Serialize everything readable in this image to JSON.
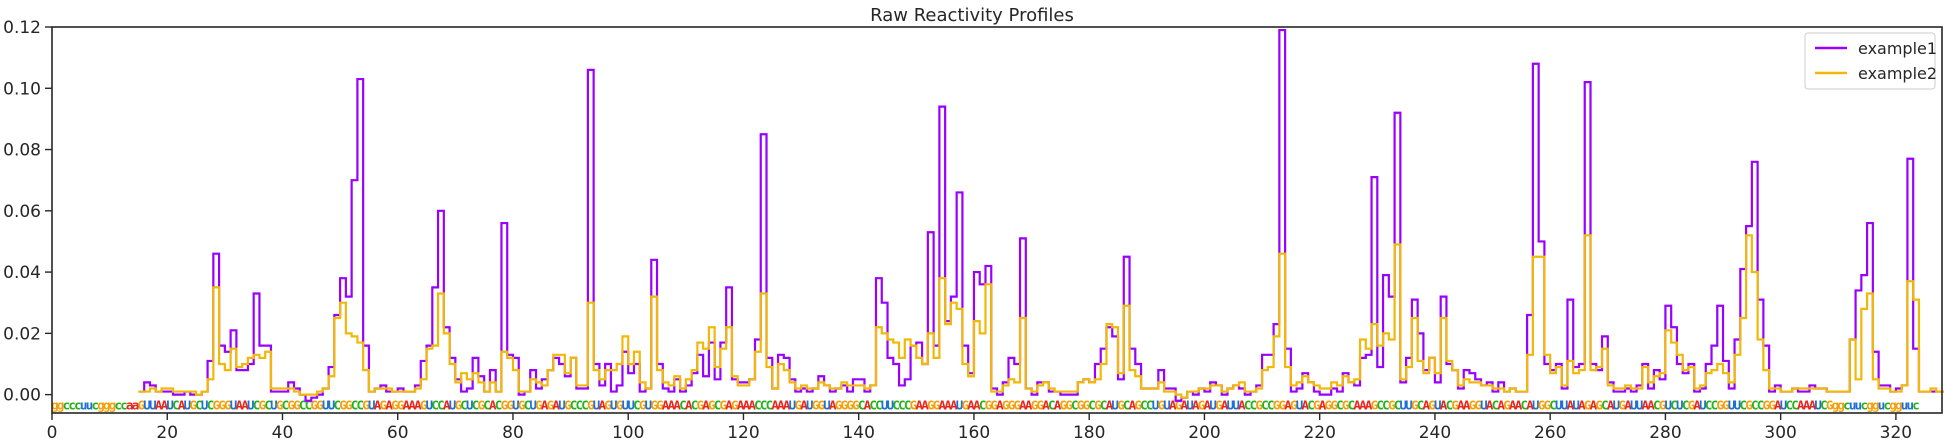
{
  "chart_data": {
    "type": "line",
    "drawstyle": "steps",
    "title": "Raw Reactivity Profiles",
    "xlabel": "",
    "ylabel": "",
    "xlim": [
      0,
      328
    ],
    "ylim": [
      -0.006,
      0.12
    ],
    "x_ticks": [
      0,
      20,
      40,
      60,
      80,
      100,
      120,
      140,
      160,
      180,
      200,
      220,
      240,
      260,
      280,
      300,
      320
    ],
    "y_ticks": [
      0.0,
      0.02,
      0.04,
      0.06,
      0.08,
      0.1,
      0.12
    ],
    "y_tick_labels": [
      "0.00",
      "0.02",
      "0.04",
      "0.06",
      "0.08",
      "0.10",
      "0.12"
    ],
    "legend_position": "top-right",
    "sequence": "ggcccuucgggccaaGUUAAUCAUGCUCGGGUAAUCGCUGCGGCCGGUUCGGCCGUAGAGGAAAGUCCAUGCUCGCACGGUGCUGAGAUGCCCGUAGUGUUCGUGGAAACACGAGCGAGAAACCCAAAUGAUGGUAGGGGCACCUUCCCGAAGGAAAUGAACGGAGGGAAGGACAGGCGGCGCAUGCAGCCUGUAGAUAGAUGAUUACCGCCGGAGUACGAGGCGCAAAGCCGCUUGCAGUACGAAGGUACAGAACAUGGCUUAUAGAGCAUGAUUAACGUCUCGAUCCGGUUCGCCGGAUCCAAAUCGggcuucggucgguuc",
    "nucleotide_colors": {
      "A": "#e8261c",
      "C": "#25b31a",
      "G": "#f2a10c",
      "U": "#1e6fd6"
    },
    "series": [
      {
        "name": "example1",
        "color": "#9900ff",
        "x_start": 15,
        "values": [
          0.001,
          0.004,
          0.003,
          0.001,
          0.001,
          0.001,
          0.0,
          0.0,
          0.001,
          0.0,
          0.0,
          0.001,
          0.011,
          0.046,
          0.016,
          0.014,
          0.021,
          0.008,
          0.008,
          0.01,
          0.033,
          0.016,
          0.016,
          0.001,
          0.001,
          0.001,
          0.004,
          0.002,
          0.0,
          -0.002,
          -0.001,
          0.0,
          0.002,
          0.009,
          0.026,
          0.038,
          0.032,
          0.07,
          0.103,
          0.016,
          0.001,
          0.002,
          0.003,
          0.001,
          0.001,
          0.002,
          0.001,
          0.001,
          0.003,
          0.011,
          0.016,
          0.035,
          0.06,
          0.022,
          0.012,
          0.005,
          0.001,
          0.002,
          0.012,
          0.006,
          0.001,
          0.008,
          0.001,
          0.056,
          0.013,
          0.012,
          0.0,
          0.001,
          0.008,
          0.002,
          0.005,
          0.008,
          0.012,
          0.01,
          0.006,
          0.012,
          0.002,
          0.002,
          0.106,
          0.01,
          0.003,
          0.01,
          0.001,
          0.003,
          0.014,
          0.007,
          0.01,
          0.001,
          0.002,
          0.044,
          0.01,
          0.002,
          0.001,
          0.005,
          0.001,
          0.003,
          0.007,
          0.013,
          0.006,
          0.017,
          0.005,
          0.017,
          0.035,
          0.005,
          0.004,
          0.004,
          0.005,
          0.018,
          0.085,
          0.012,
          0.002,
          0.013,
          0.012,
          0.005,
          0.001,
          0.002,
          0.001,
          0.002,
          0.006,
          0.003,
          0.001,
          0.002,
          0.003,
          0.001,
          0.005,
          0.005,
          0.001,
          0.003,
          0.038,
          0.03,
          0.012,
          0.01,
          0.003,
          0.005,
          0.016,
          0.017,
          0.01,
          0.053,
          0.016,
          0.094,
          0.024,
          0.032,
          0.066,
          0.016,
          0.007,
          0.04,
          0.036,
          0.042,
          0.002,
          0.0,
          0.004,
          0.012,
          0.01,
          0.051,
          0.002,
          0.0,
          0.004,
          0.004,
          0.001,
          0.001,
          0.0,
          0.0,
          0.0,
          0.004,
          0.005,
          0.004,
          0.01,
          0.015,
          0.022,
          0.019,
          0.005,
          0.045,
          0.015,
          0.01,
          0.002,
          0.002,
          0.002,
          0.008,
          0.002,
          0.002,
          -0.002,
          -0.001,
          0.001,
          0.0,
          0.002,
          0.001,
          0.004,
          0.003,
          0.0,
          0.002,
          0.003,
          0.002,
          0.0,
          0.001,
          0.003,
          0.013,
          0.013,
          0.023,
          0.119,
          0.015,
          0.001,
          0.002,
          0.007,
          0.004,
          0.001,
          0.0,
          0.0,
          0.002,
          0.001,
          0.007,
          0.004,
          0.003,
          0.012,
          0.013,
          0.071,
          0.009,
          0.039,
          0.032,
          0.092,
          0.004,
          0.012,
          0.031,
          0.02,
          0.008,
          0.012,
          0.004,
          0.032,
          0.01,
          0.008,
          0.002,
          0.008,
          0.007,
          0.005,
          0.003,
          0.004,
          0.001,
          0.004,
          0.001,
          0.002,
          0.001,
          0.001,
          0.026,
          0.108,
          0.05,
          0.01,
          0.008,
          0.01,
          0.002,
          0.031,
          0.009,
          0.01,
          0.102,
          0.01,
          0.008,
          0.019,
          0.004,
          0.001,
          0.001,
          0.002,
          0.001,
          0.003,
          0.01,
          0.002,
          0.008,
          0.005,
          0.029,
          0.022,
          0.01,
          0.007,
          0.01,
          0.001,
          0.002,
          0.01,
          0.016,
          0.029,
          0.011,
          0.002,
          0.018,
          0.041,
          0.055,
          0.076,
          0.031,
          0.016,
          0.001,
          0.003,
          0.001,
          0.001,
          0.002,
          0.001,
          0.001,
          0.003,
          0.002,
          0.002,
          0.001,
          0.001,
          0.001,
          0.001,
          0.018,
          0.034,
          0.039,
          0.056,
          0.014,
          0.003,
          0.003,
          0.001,
          0.002,
          0.003,
          0.077,
          0.015,
          0.001,
          0.001,
          0.001,
          0.001,
          0.001,
          0.003,
          0.007,
          0.0,
          0.008,
          0.021,
          0.023,
          0.007,
          0.025,
          0.01,
          0.0,
          0.0
        ]
      },
      {
        "name": "example2",
        "color": "#f2b807",
        "x_start": 15,
        "values": [
          0.001,
          0.001,
          0.002,
          0.001,
          0.002,
          0.002,
          0.001,
          0.001,
          0.001,
          0.001,
          0.0,
          0.001,
          0.005,
          0.035,
          0.01,
          0.008,
          0.015,
          0.009,
          0.01,
          0.012,
          0.013,
          0.012,
          0.014,
          0.002,
          0.002,
          0.002,
          0.002,
          0.001,
          0.0,
          0.0,
          0.0,
          0.001,
          0.002,
          0.006,
          0.025,
          0.03,
          0.02,
          0.019,
          0.017,
          0.008,
          0.001,
          0.002,
          0.002,
          0.002,
          0.001,
          0.001,
          0.001,
          0.001,
          0.002,
          0.005,
          0.015,
          0.016,
          0.033,
          0.02,
          0.01,
          0.004,
          0.007,
          0.005,
          0.007,
          0.004,
          0.001,
          0.004,
          0.001,
          0.014,
          0.012,
          0.008,
          0.001,
          0.001,
          0.005,
          0.004,
          0.003,
          0.008,
          0.013,
          0.013,
          0.007,
          0.012,
          0.003,
          0.003,
          0.03,
          0.008,
          0.005,
          0.008,
          0.008,
          0.01,
          0.019,
          0.01,
          0.014,
          0.004,
          0.002,
          0.032,
          0.008,
          0.004,
          0.003,
          0.006,
          0.002,
          0.005,
          0.008,
          0.017,
          0.015,
          0.022,
          0.009,
          0.015,
          0.022,
          0.006,
          0.003,
          0.003,
          0.005,
          0.014,
          0.033,
          0.009,
          0.002,
          0.01,
          0.008,
          0.004,
          0.002,
          0.003,
          0.002,
          0.002,
          0.004,
          0.003,
          0.002,
          0.002,
          0.004,
          0.003,
          0.003,
          0.003,
          0.002,
          0.003,
          0.022,
          0.02,
          0.018,
          0.017,
          0.012,
          0.018,
          0.016,
          0.012,
          0.01,
          0.02,
          0.012,
          0.038,
          0.023,
          0.03,
          0.028,
          0.01,
          0.006,
          0.024,
          0.02,
          0.036,
          0.001,
          0.001,
          0.003,
          0.005,
          0.004,
          0.025,
          0.002,
          0.001,
          0.003,
          0.004,
          0.002,
          0.001,
          0.001,
          0.001,
          0.001,
          0.004,
          0.005,
          0.004,
          0.005,
          0.01,
          0.023,
          0.022,
          0.007,
          0.029,
          0.008,
          0.006,
          0.002,
          0.002,
          0.002,
          0.004,
          0.001,
          0.001,
          0.0,
          -0.001,
          0.001,
          0.001,
          0.002,
          0.002,
          0.003,
          0.003,
          0.001,
          0.002,
          0.003,
          0.004,
          0.001,
          0.001,
          0.002,
          0.008,
          0.009,
          0.019,
          0.046,
          0.009,
          0.003,
          0.004,
          0.006,
          0.004,
          0.003,
          0.002,
          0.002,
          0.004,
          0.003,
          0.006,
          0.004,
          0.005,
          0.018,
          0.015,
          0.023,
          0.016,
          0.02,
          0.018,
          0.049,
          0.005,
          0.009,
          0.025,
          0.011,
          0.007,
          0.012,
          0.007,
          0.025,
          0.011,
          0.008,
          0.003,
          0.005,
          0.004,
          0.004,
          0.003,
          0.003,
          0.002,
          0.002,
          0.001,
          0.002,
          0.001,
          0.001,
          0.013,
          0.045,
          0.045,
          0.013,
          0.007,
          0.009,
          0.003,
          0.011,
          0.007,
          0.008,
          0.052,
          0.008,
          0.009,
          0.015,
          0.003,
          0.002,
          0.002,
          0.003,
          0.002,
          0.002,
          0.009,
          0.004,
          0.006,
          0.007,
          0.021,
          0.017,
          0.013,
          0.008,
          0.009,
          0.002,
          0.003,
          0.007,
          0.008,
          0.01,
          0.007,
          0.004,
          0.013,
          0.025,
          0.052,
          0.04,
          0.018,
          0.008,
          0.002,
          0.002,
          0.001,
          0.001,
          0.002,
          0.002,
          0.002,
          0.002,
          0.002,
          0.002,
          0.001,
          0.001,
          0.001,
          0.001,
          0.018,
          0.005,
          0.028,
          0.033,
          0.005,
          0.002,
          0.002,
          0.001,
          0.001,
          0.003,
          0.037,
          0.031,
          0.001,
          0.001,
          0.002,
          0.001,
          0.001,
          0.002,
          0.005,
          0.001,
          0.007,
          0.019,
          0.009,
          0.008,
          0.011,
          0.01,
          -0.001,
          -0.001
        ]
      }
    ]
  }
}
